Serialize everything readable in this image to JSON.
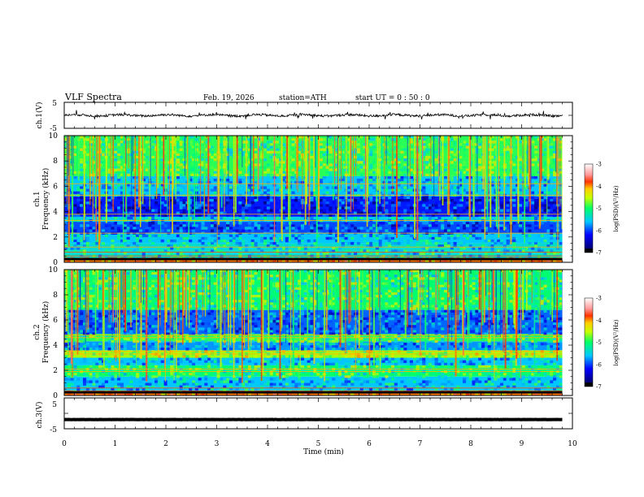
{
  "header": {
    "title": "VLF  Spectra",
    "date": "Feb. 19, 2026",
    "station": "station=ATH",
    "start": "start  UT  =   0  : 50 : 0"
  },
  "chart_data": [
    {
      "type": "line",
      "panel": "ch1-waveform",
      "ylabel": "ch.1(V)",
      "yticks": [
        "5",
        "-5"
      ],
      "ylim": [
        -5,
        5
      ],
      "xlim": [
        0,
        10
      ],
      "signal": "noisy waveform with amplitude about ±0.5 V and short spikes up to ±1.5 V, data ends near 9.8 min"
    },
    {
      "type": "heatmap",
      "panel": "ch1-spectrogram",
      "ylabel_top": "ch.1",
      "ylabel": "Frequency  (kHz)",
      "yticks": [
        "0",
        "2",
        "4",
        "6",
        "8",
        "10"
      ],
      "ylim": [
        0,
        10
      ],
      "xlim": [
        0,
        10
      ],
      "colorbar": {
        "label": "log(PSD)(V²/Hz)",
        "ticks": [
          "-3",
          "-4",
          "-5",
          "-6",
          "-7"
        ],
        "range": [
          -7,
          -3
        ]
      },
      "bands": [
        {
          "from": 0,
          "to": 0.35,
          "level": -3.8
        },
        {
          "from": 0.35,
          "to": 1.5,
          "level": -5.4
        },
        {
          "from": 1.5,
          "to": 2.3,
          "level": -5.6
        },
        {
          "from": 2.3,
          "to": 3.2,
          "level": -6.1
        },
        {
          "from": 3.2,
          "to": 3.6,
          "level": -5.5
        },
        {
          "from": 3.6,
          "to": 5.2,
          "level": -6.3
        },
        {
          "from": 5.2,
          "to": 6.8,
          "level": -5.6
        },
        {
          "from": 6.8,
          "to": 10,
          "level": -4.9
        }
      ],
      "lines_khz": [
        0.2,
        0.5,
        0.8,
        1.2,
        2.3,
        3.3,
        3.8,
        5.3,
        6.2
      ]
    },
    {
      "type": "heatmap",
      "panel": "ch2-spectrogram",
      "ylabel_top": "ch.2",
      "ylabel": "Frequency  (kHz)",
      "yticks": [
        "0",
        "2",
        "4",
        "6",
        "8",
        "10"
      ],
      "ylim": [
        0,
        10
      ],
      "xlim": [
        0,
        10
      ],
      "colorbar": {
        "label": "log(PSD)(V²/Hz)",
        "ticks": [
          "-3",
          "-4",
          "-5",
          "-6",
          "-7"
        ],
        "range": [
          -7,
          -3
        ]
      },
      "bands": [
        {
          "from": 0,
          "to": 0.4,
          "level": -3.8
        },
        {
          "from": 0.4,
          "to": 1.5,
          "level": -5.6
        },
        {
          "from": 1.5,
          "to": 2.4,
          "level": -5.0
        },
        {
          "from": 2.4,
          "to": 3.0,
          "level": -5.6
        },
        {
          "from": 3.0,
          "to": 3.6,
          "level": -4.6
        },
        {
          "from": 3.6,
          "to": 4.3,
          "level": -5.8
        },
        {
          "from": 4.3,
          "to": 4.9,
          "level": -4.9
        },
        {
          "from": 4.9,
          "to": 6.8,
          "level": -6.0
        },
        {
          "from": 6.8,
          "to": 10,
          "level": -5.0
        }
      ],
      "lines_khz": [
        0.2,
        0.6,
        1.9,
        2.1,
        3.3,
        3.5,
        4.6,
        4.8
      ]
    },
    {
      "type": "line",
      "panel": "ch3-waveform",
      "ylabel": "ch.3(V)",
      "yticks": [
        "5",
        "-5"
      ],
      "ylim": [
        -5,
        5
      ],
      "xlim": [
        0,
        10
      ],
      "signal": "flat thick trace near -2 V"
    }
  ],
  "xaxis": {
    "label": "Time  (min)",
    "ticks": [
      "0",
      "1",
      "2",
      "3",
      "4",
      "5",
      "6",
      "7",
      "8",
      "9",
      "10"
    ]
  }
}
